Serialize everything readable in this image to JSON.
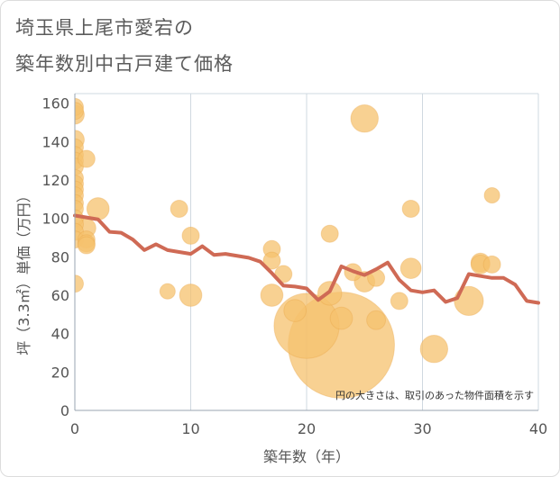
{
  "title_line1": "埼玉県上尾市愛宕の",
  "title_line2": "築年数別中古戸建て価格",
  "colors": {
    "bubble_fill": "#f5c16e",
    "bubble_stroke": "#e8a445",
    "line": "#cf6a55",
    "grid": "#cfd8e0",
    "tick_text": "#555555"
  },
  "chart_data": {
    "type": "scatter",
    "xlabel": "築年数（年）",
    "ylabel": "坪（3.3㎡）単価（万円）",
    "xlim": [
      0,
      40
    ],
    "ylim": [
      0,
      165
    ],
    "x_ticks": [
      0,
      10,
      20,
      30,
      40
    ],
    "y_ticks": [
      0,
      20,
      40,
      60,
      80,
      100,
      120,
      140,
      160
    ],
    "grid": "vertical gridlines at x ticks",
    "annotation": "円の大きさは、取引のあった物件面積を示す",
    "bubbles": [
      {
        "x": 0,
        "y": 158,
        "s": 1
      },
      {
        "x": 0,
        "y": 156,
        "s": 1
      },
      {
        "x": 0,
        "y": 154,
        "s": 1.1
      },
      {
        "x": 0,
        "y": 141,
        "s": 1.1
      },
      {
        "x": 0,
        "y": 137,
        "s": 1
      },
      {
        "x": 0,
        "y": 133,
        "s": 1
      },
      {
        "x": 0,
        "y": 130,
        "s": 1
      },
      {
        "x": 0,
        "y": 127,
        "s": 1
      },
      {
        "x": 0,
        "y": 121,
        "s": 1
      },
      {
        "x": 0,
        "y": 118,
        "s": 1
      },
      {
        "x": 0,
        "y": 115,
        "s": 1
      },
      {
        "x": 0,
        "y": 112,
        "s": 1
      },
      {
        "x": 0,
        "y": 108,
        "s": 1
      },
      {
        "x": 0,
        "y": 105,
        "s": 1
      },
      {
        "x": 0,
        "y": 100,
        "s": 1
      },
      {
        "x": 0,
        "y": 97,
        "s": 1
      },
      {
        "x": 0,
        "y": 93,
        "s": 1
      },
      {
        "x": 0,
        "y": 89,
        "s": 1
      },
      {
        "x": 0,
        "y": 66,
        "s": 1
      },
      {
        "x": 1,
        "y": 131,
        "s": 1
      },
      {
        "x": 1,
        "y": 95,
        "s": 1.1
      },
      {
        "x": 1,
        "y": 89,
        "s": 1
      },
      {
        "x": 1,
        "y": 87,
        "s": 1
      },
      {
        "x": 1,
        "y": 86,
        "s": 1
      },
      {
        "x": 2,
        "y": 105,
        "s": 1.3
      },
      {
        "x": 8,
        "y": 62,
        "s": 0.9
      },
      {
        "x": 9,
        "y": 105,
        "s": 1
      },
      {
        "x": 10,
        "y": 91,
        "s": 1
      },
      {
        "x": 10,
        "y": 60,
        "s": 1.3
      },
      {
        "x": 17,
        "y": 84,
        "s": 1
      },
      {
        "x": 17,
        "y": 78,
        "s": 1
      },
      {
        "x": 17,
        "y": 60,
        "s": 1.3
      },
      {
        "x": 18,
        "y": 71,
        "s": 1
      },
      {
        "x": 19,
        "y": 52,
        "s": 1.3
      },
      {
        "x": 20,
        "y": 44,
        "s": 3.8
      },
      {
        "x": 22,
        "y": 92,
        "s": 1
      },
      {
        "x": 22,
        "y": 61,
        "s": 1.4
      },
      {
        "x": 23,
        "y": 48,
        "s": 1.3
      },
      {
        "x": 23,
        "y": 34,
        "s": 6.2
      },
      {
        "x": 24,
        "y": 72,
        "s": 1
      },
      {
        "x": 25,
        "y": 152,
        "s": 1.6
      },
      {
        "x": 25,
        "y": 67,
        "s": 1.2
      },
      {
        "x": 26,
        "y": 69,
        "s": 1
      },
      {
        "x": 26,
        "y": 47,
        "s": 1.1
      },
      {
        "x": 28,
        "y": 57,
        "s": 1
      },
      {
        "x": 29,
        "y": 105,
        "s": 1
      },
      {
        "x": 29,
        "y": 74,
        "s": 1.2
      },
      {
        "x": 31,
        "y": 32,
        "s": 1.6
      },
      {
        "x": 34,
        "y": 57,
        "s": 1.7
      },
      {
        "x": 35,
        "y": 77,
        "s": 1.1
      },
      {
        "x": 35,
        "y": 76,
        "s": 1.1
      },
      {
        "x": 36,
        "y": 112,
        "s": 0.9
      },
      {
        "x": 36,
        "y": 76,
        "s": 1
      }
    ],
    "trend": {
      "name": "",
      "x": [
        0,
        1,
        2,
        3,
        4,
        5,
        6,
        7,
        8,
        9,
        10,
        11,
        12,
        13,
        14,
        15,
        16,
        17,
        18,
        19,
        20,
        21,
        22,
        23,
        24,
        25,
        26,
        27,
        28,
        29,
        30,
        31,
        32,
        33,
        34,
        35,
        36,
        37,
        38,
        39,
        40
      ],
      "y": [
        101.5,
        100.5,
        99.5,
        93,
        92.5,
        89,
        83.5,
        86.5,
        83.5,
        82.5,
        81.5,
        85.5,
        81,
        81.5,
        80.5,
        79.5,
        77.5,
        71.5,
        65,
        64.5,
        63.5,
        57.5,
        62,
        75,
        72.5,
        70.5,
        73.5,
        77,
        68,
        62.5,
        61.5,
        62.5,
        56.5,
        58.5,
        71,
        70,
        69,
        69,
        65.5,
        57,
        56
      ]
    }
  }
}
